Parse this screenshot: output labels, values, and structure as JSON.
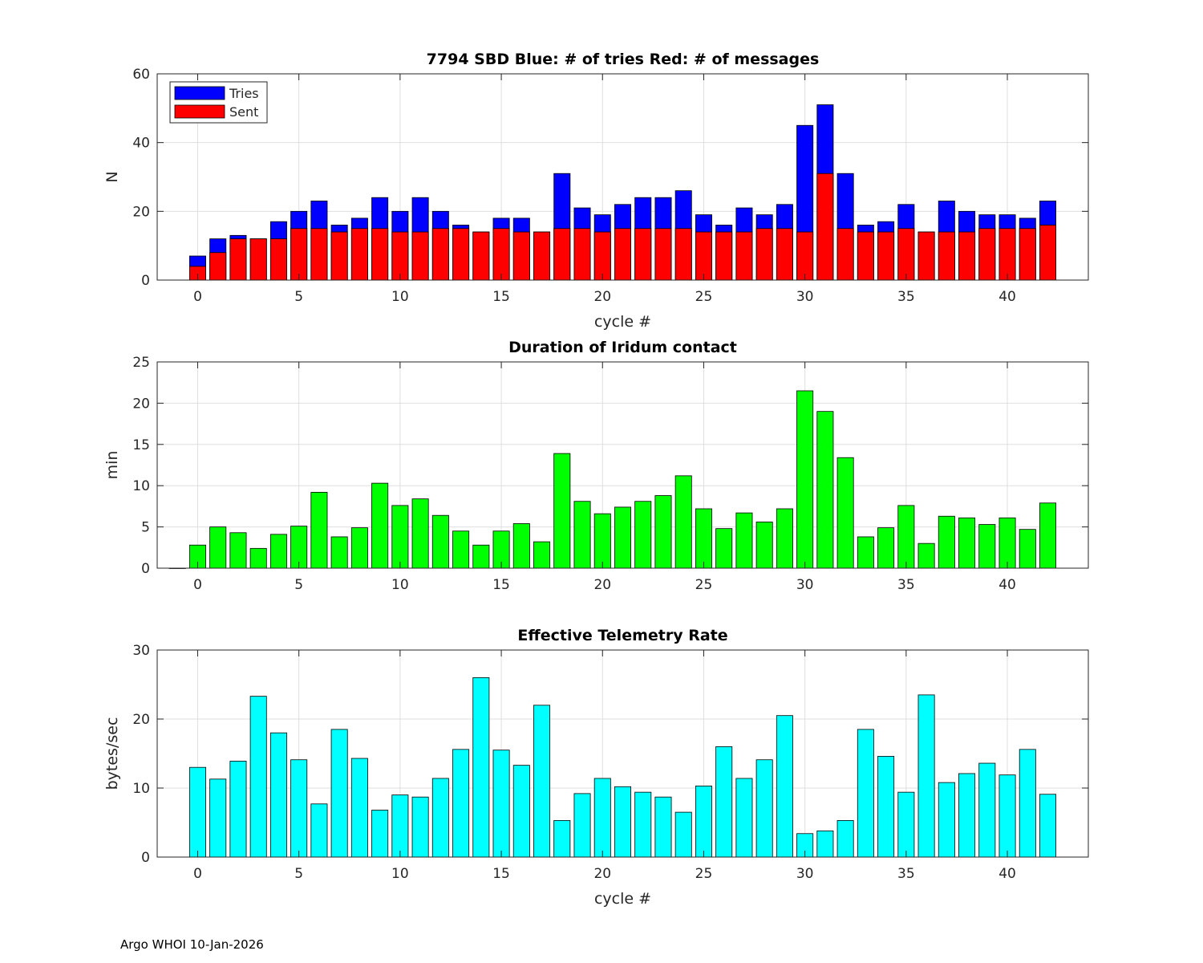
{
  "footer": "Argo WHOI 10-Jan-2026",
  "chart_data": [
    {
      "type": "bar",
      "title": "7794 SBD  Blue: # of tries   Red: # of messages",
      "xlabel": "cycle #",
      "ylabel": "N",
      "xlim": [
        -2,
        44
      ],
      "ylim": [
        0,
        60
      ],
      "xticks": [
        0,
        5,
        10,
        15,
        20,
        25,
        30,
        35,
        40
      ],
      "yticks": [
        0,
        20,
        40,
        60
      ],
      "grid": true,
      "legend_position": "top-left",
      "x": [
        0,
        1,
        2,
        3,
        4,
        5,
        6,
        7,
        8,
        9,
        10,
        11,
        12,
        13,
        14,
        15,
        16,
        17,
        18,
        19,
        20,
        21,
        22,
        23,
        24,
        25,
        26,
        27,
        28,
        29,
        30,
        31,
        32,
        33,
        34,
        35,
        36,
        37,
        38,
        39,
        40,
        41,
        42
      ],
      "series": [
        {
          "name": "Tries",
          "color": "#0000ff",
          "values": [
            7,
            12,
            13,
            12,
            17,
            20,
            23,
            16,
            18,
            24,
            20,
            24,
            20,
            16,
            14,
            18,
            18,
            14,
            31,
            21,
            19,
            22,
            24,
            24,
            26,
            19,
            16,
            21,
            19,
            22,
            45,
            51,
            31,
            16,
            17,
            22,
            14,
            23,
            20,
            19,
            19,
            18,
            23
          ]
        },
        {
          "name": "Sent",
          "color": "#ff0000",
          "values": [
            4,
            8,
            12,
            12,
            12,
            15,
            15,
            14,
            15,
            15,
            14,
            14,
            15,
            15,
            14,
            15,
            14,
            14,
            15,
            15,
            14,
            15,
            15,
            15,
            15,
            14,
            14,
            14,
            15,
            15,
            14,
            31,
            15,
            14,
            14,
            15,
            14,
            14,
            14,
            15,
            15,
            15,
            16
          ]
        }
      ]
    },
    {
      "type": "bar",
      "title": "Duration of Iridum contact",
      "xlabel": "",
      "ylabel": "min",
      "xlim": [
        -2,
        44
      ],
      "ylim": [
        0,
        25
      ],
      "xticks": [
        0,
        5,
        10,
        15,
        20,
        25,
        30,
        35,
        40
      ],
      "yticks": [
        0,
        5,
        10,
        15,
        20,
        25
      ],
      "grid": true,
      "x": [
        -1,
        0,
        1,
        2,
        3,
        4,
        5,
        6,
        7,
        8,
        9,
        10,
        11,
        12,
        13,
        14,
        15,
        16,
        17,
        18,
        19,
        20,
        21,
        22,
        23,
        24,
        25,
        26,
        27,
        28,
        29,
        30,
        31,
        32,
        33,
        34,
        35,
        36,
        37,
        38,
        39,
        40,
        41,
        42
      ],
      "series": [
        {
          "name": "Duration",
          "color": "#00ff00",
          "values": [
            0,
            2.8,
            5.0,
            4.3,
            2.4,
            4.1,
            5.1,
            9.2,
            3.8,
            4.9,
            10.3,
            7.6,
            8.4,
            6.4,
            4.5,
            2.8,
            4.5,
            5.4,
            3.2,
            13.9,
            8.1,
            6.6,
            7.4,
            8.1,
            8.8,
            11.2,
            7.2,
            4.8,
            6.7,
            5.6,
            7.2,
            21.5,
            19.0,
            13.4,
            3.8,
            4.9,
            7.6,
            3.0,
            6.3,
            6.1,
            5.3,
            6.1,
            4.7,
            7.9
          ]
        }
      ]
    },
    {
      "type": "bar",
      "title": "Effective Telemetry Rate",
      "xlabel": "cycle #",
      "ylabel": "bytes/sec",
      "xlim": [
        -2,
        44
      ],
      "ylim": [
        0,
        30
      ],
      "xticks": [
        0,
        5,
        10,
        15,
        20,
        25,
        30,
        35,
        40
      ],
      "yticks": [
        0,
        10,
        20,
        30
      ],
      "grid": true,
      "x": [
        0,
        1,
        2,
        3,
        4,
        5,
        6,
        7,
        8,
        9,
        10,
        11,
        12,
        13,
        14,
        15,
        16,
        17,
        18,
        19,
        20,
        21,
        22,
        23,
        24,
        25,
        26,
        27,
        28,
        29,
        30,
        31,
        32,
        33,
        34,
        35,
        36,
        37,
        38,
        39,
        40,
        41,
        42
      ],
      "series": [
        {
          "name": "Rate",
          "color": "#00ffff",
          "values": [
            13.0,
            11.3,
            13.9,
            23.3,
            18.0,
            14.1,
            7.7,
            18.5,
            14.3,
            6.8,
            9.0,
            8.7,
            11.4,
            15.6,
            26.0,
            15.5,
            13.3,
            22.0,
            5.3,
            9.2,
            11.4,
            10.2,
            9.4,
            8.7,
            6.5,
            10.3,
            16.0,
            11.4,
            14.1,
            20.5,
            3.4,
            3.8,
            5.3,
            18.5,
            14.6,
            9.4,
            23.5,
            10.8,
            12.1,
            13.6,
            11.9,
            15.6,
            9.1
          ]
        }
      ]
    }
  ]
}
